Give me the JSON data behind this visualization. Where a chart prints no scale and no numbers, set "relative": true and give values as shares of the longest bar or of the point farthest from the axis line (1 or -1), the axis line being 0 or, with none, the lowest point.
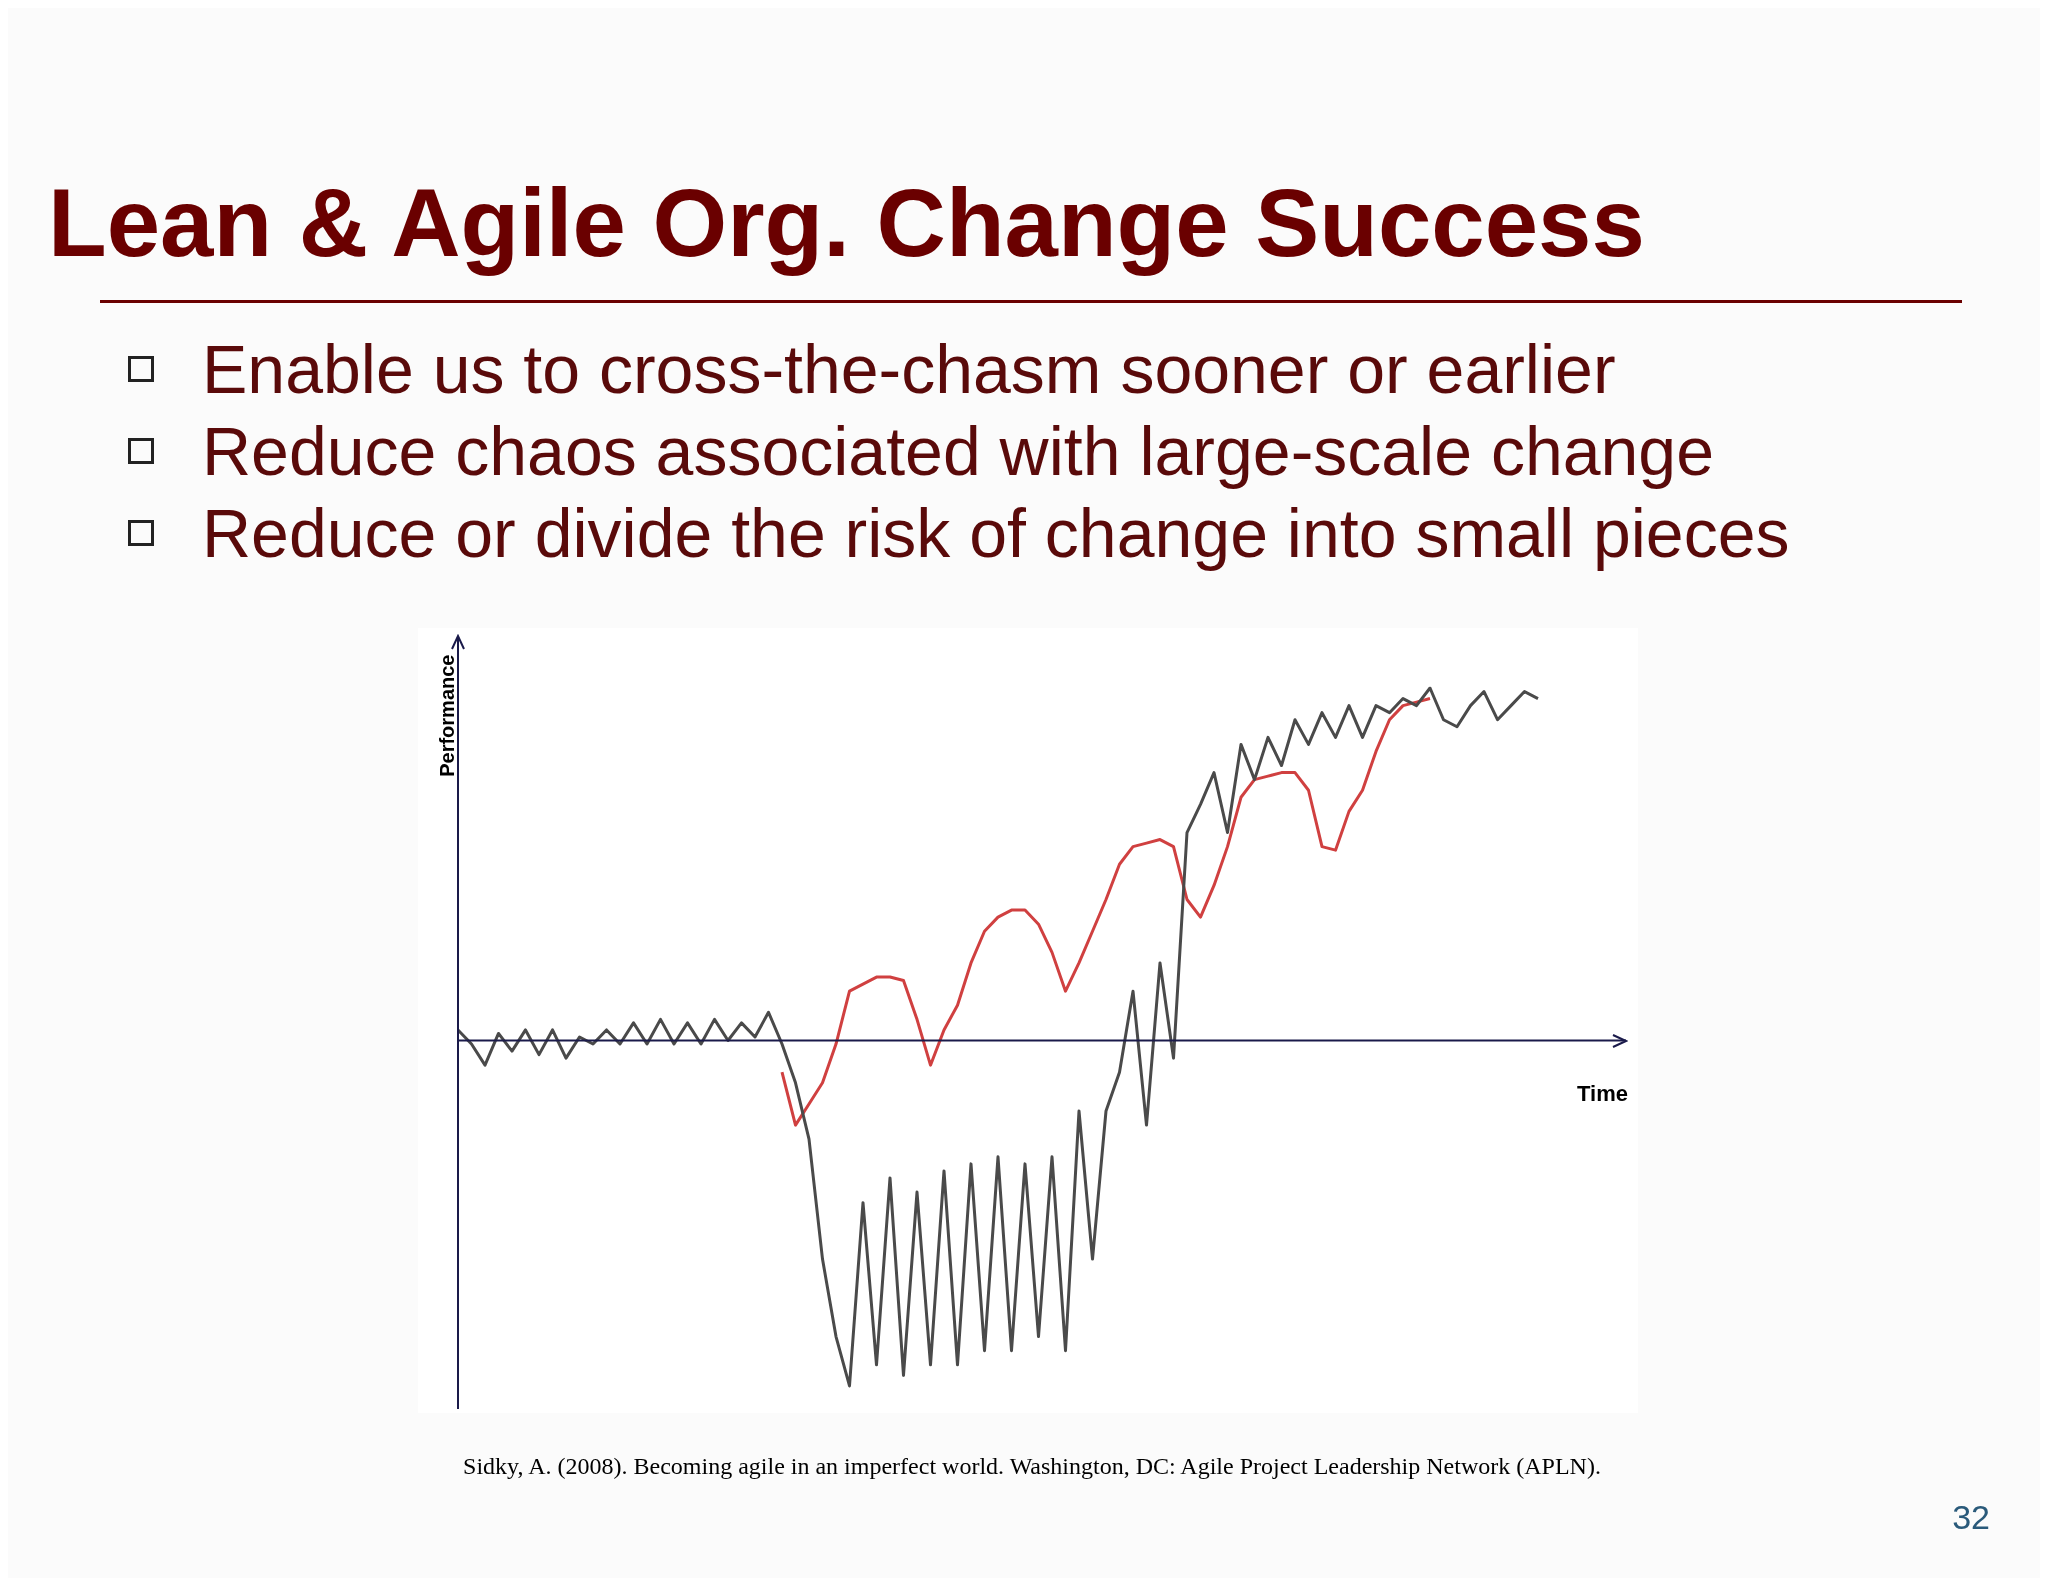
{
  "chart_data": {
    "type": "line",
    "title": "Lean & Agile Org. Change Success",
    "annotations": [
      "Enable us to cross-the-chasm sooner or earlier",
      "Reduce chaos associated with large-scale change",
      "Reduce or divide the risk of change into small pieces",
      "Sidky, A. (2008). Becoming agile in an imperfect world. Washington, DC: Agile Project Leadership Network (APLN).",
      "32"
    ],
    "xlabel": "Time",
    "ylabel": "Performance",
    "relative": true,
    "legend": false,
    "marker": "none",
    "categories": [
      null,
      null,
      null,
      null,
      null,
      null,
      null,
      null,
      null,
      null,
      null,
      null,
      null,
      null,
      null,
      null,
      null,
      null,
      null,
      null,
      null,
      null,
      null,
      null,
      null,
      null,
      null,
      null,
      null,
      null,
      null,
      null,
      null,
      null,
      null,
      null,
      null,
      null,
      null,
      null,
      null,
      null,
      null,
      null,
      null,
      null,
      null,
      null,
      null,
      null,
      null,
      null,
      null,
      null,
      null,
      null,
      null,
      null,
      null,
      null,
      null,
      null,
      null,
      null,
      null,
      null,
      null,
      null,
      null,
      null,
      null,
      null,
      null,
      null,
      null,
      null,
      null,
      null,
      null,
      null,
      null
    ],
    "series": [
      {
        "color": "#4a4a4a",
        "values": [
          0.03,
          -0.01,
          -0.07,
          0.02,
          -0.03,
          0.03,
          -0.04,
          0.03,
          -0.05,
          0.01,
          -0.01,
          0.03,
          -0.01,
          0.05,
          -0.01,
          0.06,
          -0.01,
          0.05,
          -0.01,
          0.06,
          0.0,
          0.05,
          0.01,
          0.08,
          -0.01,
          -0.12,
          -0.28,
          -0.62,
          -0.84,
          -0.98,
          -0.46,
          -0.92,
          -0.39,
          -0.95,
          -0.43,
          -0.92,
          -0.37,
          -0.92,
          -0.35,
          -0.88,
          -0.33,
          -0.88,
          -0.35,
          -0.84,
          -0.33,
          -0.88,
          -0.2,
          -0.62,
          -0.2,
          -0.09,
          0.14,
          -0.24,
          0.22,
          -0.05,
          0.59,
          0.67,
          0.76,
          0.59,
          0.84,
          0.74,
          0.86,
          0.78,
          0.91,
          0.84,
          0.93,
          0.86,
          0.95,
          0.86,
          0.95,
          0.93,
          0.97,
          0.95,
          1.0,
          0.91,
          0.89,
          0.95,
          0.99,
          0.91,
          0.95,
          0.99,
          0.97
        ]
      },
      {
        "color": "#d04040",
        "values": [
          null,
          null,
          null,
          null,
          null,
          null,
          null,
          null,
          null,
          null,
          null,
          null,
          null,
          null,
          null,
          null,
          null,
          null,
          null,
          null,
          null,
          null,
          null,
          null,
          -0.09,
          -0.24,
          -0.18,
          -0.12,
          -0.01,
          0.14,
          0.16,
          0.18,
          0.18,
          0.17,
          0.06,
          -0.07,
          0.03,
          0.1,
          0.22,
          0.31,
          0.35,
          0.37,
          0.37,
          0.33,
          0.25,
          0.14,
          0.22,
          0.31,
          0.4,
          0.5,
          0.55,
          0.56,
          0.57,
          0.55,
          0.4,
          0.35,
          0.44,
          0.55,
          0.69,
          0.74,
          0.75,
          0.76,
          0.76,
          0.71,
          0.55,
          0.54,
          0.65,
          0.71,
          0.82,
          0.91,
          0.95,
          0.96,
          0.97,
          null,
          null,
          null,
          null,
          null,
          null,
          null,
          null
        ]
      }
    ]
  }
}
